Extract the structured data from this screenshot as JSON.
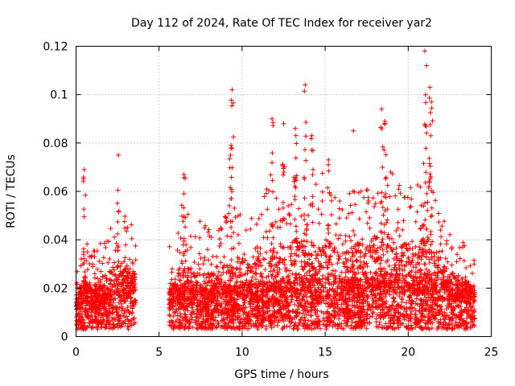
{
  "chart_data": {
    "type": "scatter",
    "title": "Day 112 of 2024, Rate Of TEC Index for receiver yar2",
    "xlabel": "GPS time / hours",
    "ylabel": "ROTI / TECUs",
    "xlim": [
      0,
      25
    ],
    "ylim": [
      0,
      0.12
    ],
    "x_ticks": [
      0,
      5,
      10,
      15,
      20,
      25
    ],
    "y_ticks": [
      0,
      0.02,
      0.04,
      0.06,
      0.08,
      0.1,
      0.12
    ],
    "x_tick_labels": [
      "0",
      "5",
      "10",
      "15",
      "20",
      "25"
    ],
    "y_tick_labels": [
      "0",
      "0.02",
      "0.04",
      "0.06",
      "0.08",
      "0.1",
      "0.12"
    ],
    "grid": true,
    "marker": "plus",
    "color": "#ff0000",
    "data_gap_hours": [
      3.6,
      5.6
    ],
    "envelope": {
      "x": [
        0.0,
        0.5,
        1.0,
        1.5,
        2.0,
        2.5,
        3.0,
        3.5,
        5.6,
        6.0,
        6.5,
        7.0,
        7.5,
        8.0,
        8.5,
        9.0,
        9.5,
        10.0,
        10.5,
        11.0,
        11.5,
        12.0,
        12.5,
        13.0,
        13.5,
        14.0,
        14.5,
        15.0,
        15.5,
        16.0,
        16.5,
        17.0,
        17.5,
        18.0,
        18.5,
        19.0,
        19.5,
        20.0,
        20.5,
        21.0,
        21.5,
        22.0,
        22.5,
        23.0,
        23.5,
        24.0
      ],
      "baseline": [
        0.012,
        0.014,
        0.012,
        0.013,
        0.014,
        0.016,
        0.017,
        0.018,
        0.013,
        0.014,
        0.013,
        0.012,
        0.012,
        0.012,
        0.013,
        0.013,
        0.013,
        0.014,
        0.014,
        0.014,
        0.015,
        0.015,
        0.016,
        0.016,
        0.017,
        0.016,
        0.016,
        0.016,
        0.016,
        0.016,
        0.016,
        0.016,
        0.016,
        0.017,
        0.017,
        0.018,
        0.018,
        0.018,
        0.017,
        0.017,
        0.016,
        0.016,
        0.015,
        0.014,
        0.014,
        0.013
      ],
      "upper": [
        0.025,
        0.04,
        0.035,
        0.04,
        0.045,
        0.055,
        0.05,
        0.045,
        0.038,
        0.042,
        0.06,
        0.045,
        0.048,
        0.045,
        0.045,
        0.05,
        0.06,
        0.055,
        0.05,
        0.055,
        0.065,
        0.06,
        0.058,
        0.065,
        0.07,
        0.06,
        0.065,
        0.07,
        0.062,
        0.058,
        0.06,
        0.065,
        0.062,
        0.07,
        0.07,
        0.068,
        0.065,
        0.065,
        0.062,
        0.07,
        0.065,
        0.05,
        0.045,
        0.042,
        0.038,
        0.032
      ]
    },
    "peaks": [
      {
        "x": 0.5,
        "y": 0.069
      },
      {
        "x": 2.55,
        "y": 0.075
      },
      {
        "x": 6.5,
        "y": 0.067
      },
      {
        "x": 9.3,
        "y": 0.075
      },
      {
        "x": 9.4,
        "y": 0.102
      },
      {
        "x": 11.8,
        "y": 0.09
      },
      {
        "x": 12.5,
        "y": 0.088
      },
      {
        "x": 13.2,
        "y": 0.086
      },
      {
        "x": 13.8,
        "y": 0.104
      },
      {
        "x": 14.2,
        "y": 0.083
      },
      {
        "x": 15.2,
        "y": 0.073
      },
      {
        "x": 16.7,
        "y": 0.085
      },
      {
        "x": 18.4,
        "y": 0.094
      },
      {
        "x": 18.6,
        "y": 0.089
      },
      {
        "x": 21.0,
        "y": 0.118
      },
      {
        "x": 21.1,
        "y": 0.112
      },
      {
        "x": 21.3,
        "y": 0.103
      },
      {
        "x": 21.4,
        "y": 0.097
      }
    ]
  }
}
